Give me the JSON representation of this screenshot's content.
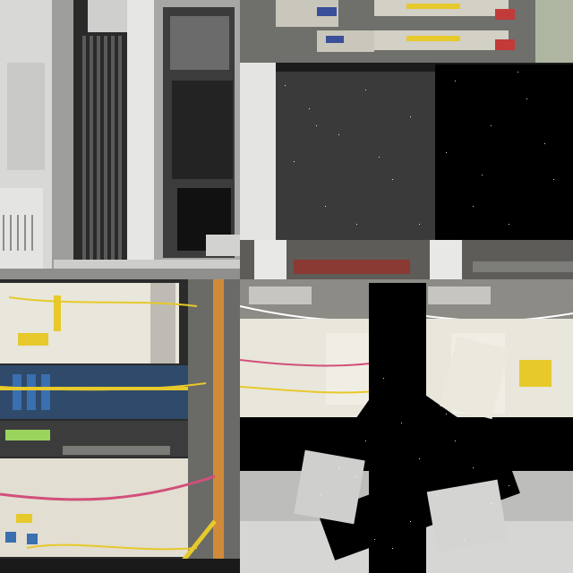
{
  "collage": {
    "panels": [
      {
        "name": "server-cabinet-grayscale",
        "style": "grayscale"
      },
      {
        "name": "equipment-rack-top-with-masked-blocks",
        "style": "color-with-noise-masks"
      },
      {
        "name": "fiber-patch-panel-rack",
        "style": "color"
      },
      {
        "name": "network-switch-with-rotated-masks",
        "style": "color-with-noise-masks"
      }
    ],
    "colors": {
      "background": "#000000",
      "gray_mask": "#3a3a3a",
      "fiber_yellow": "#e7c92b",
      "fiber_pink": "#d24f7a",
      "fiber_blue": "#3a6fb0",
      "rack_white": "#e9e6dc",
      "metal": "#9a9a96"
    }
  }
}
